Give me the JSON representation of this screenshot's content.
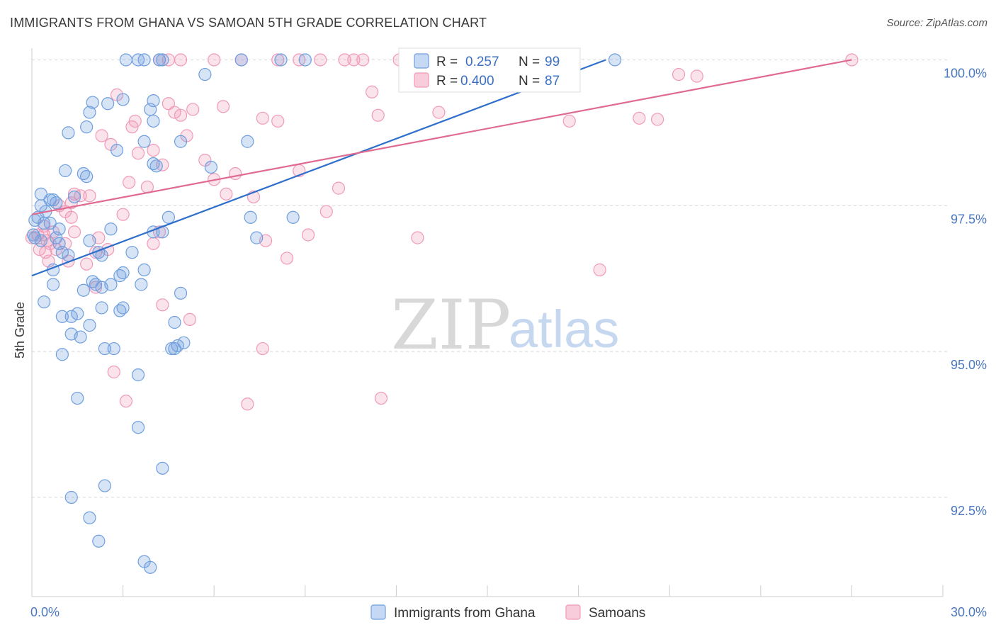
{
  "title": "IMMIGRANTS FROM GHANA VS SAMOAN 5TH GRADE CORRELATION CHART",
  "source": "Source: ZipAtlas.com",
  "watermark": {
    "zip": "ZIP",
    "atlas": "atlas"
  },
  "colors": {
    "ghana": "#6f9fde",
    "ghana_line": "#2f6fcc",
    "samoan": "#f09ab8",
    "samoan_line": "#e06a92",
    "grid": "#d8d8d8",
    "tick_text": "#4a78c2"
  },
  "legend": {
    "r_label": "R =",
    "n_label": "N =",
    "ghana_r": "0.257",
    "ghana_n": "99",
    "samoan_r": "0.400",
    "samoan_n": "87"
  },
  "bottom_legend": {
    "ghana": "Immigrants from Ghana",
    "samoan": "Samoans"
  },
  "chart_data": {
    "type": "scatter",
    "title": "IMMIGRANTS FROM GHANA VS SAMOAN 5TH GRADE CORRELATION CHART",
    "xlabel": "",
    "ylabel": "5th Grade",
    "xlim": [
      0,
      30
    ],
    "ylim": [
      90.8,
      100.2
    ],
    "x_tick_labels": [
      "0.0%",
      "30.0%"
    ],
    "y_ticks": [
      92.5,
      95.0,
      97.5,
      100.0
    ],
    "y_tick_labels": [
      "92.5%",
      "95.0%",
      "97.5%",
      "100.0%"
    ],
    "grid": "horizontal dashed",
    "legend_position": "top-center",
    "series": [
      {
        "name": "Immigrants from Ghana",
        "r": 0.257,
        "n": 99,
        "trend": {
          "x": [
            0,
            18.9
          ],
          "y": [
            96.3,
            100.0
          ]
        },
        "trend_dashed": {
          "x": [
            18.9,
            19.1
          ],
          "y": [
            100.0,
            100.04
          ]
        },
        "points": [
          [
            3.1,
            100
          ],
          [
            3.7,
            100
          ],
          [
            3.5,
            100
          ],
          [
            4.2,
            100
          ],
          [
            4.3,
            100
          ],
          [
            6.9,
            100
          ],
          [
            8.2,
            100
          ],
          [
            9.0,
            100
          ],
          [
            19.2,
            100
          ],
          [
            5.7,
            99.75
          ],
          [
            2.0,
            99.27
          ],
          [
            2.5,
            99.25
          ],
          [
            3.0,
            99.32
          ],
          [
            4.0,
            99.3
          ],
          [
            1.9,
            99.1
          ],
          [
            3.9,
            99.15
          ],
          [
            4.0,
            98.95
          ],
          [
            1.8,
            98.85
          ],
          [
            1.2,
            98.75
          ],
          [
            3.7,
            98.6
          ],
          [
            4.9,
            98.6
          ],
          [
            7.1,
            98.6
          ],
          [
            2.8,
            98.45
          ],
          [
            4.0,
            98.22
          ],
          [
            4.1,
            98.18
          ],
          [
            5.9,
            98.16
          ],
          [
            1.1,
            98.1
          ],
          [
            1.7,
            98.05
          ],
          [
            1.8,
            98.0
          ],
          [
            0.3,
            97.7
          ],
          [
            0.6,
            97.6
          ],
          [
            0.7,
            97.6
          ],
          [
            0.8,
            97.55
          ],
          [
            1.4,
            97.65
          ],
          [
            0.3,
            97.5
          ],
          [
            0.45,
            97.4
          ],
          [
            0.2,
            97.3
          ],
          [
            0.4,
            97.2
          ],
          [
            0.1,
            97.25
          ],
          [
            0.6,
            97.2
          ],
          [
            0.9,
            97.1
          ],
          [
            2.6,
            97.1
          ],
          [
            4.0,
            97.05
          ],
          [
            4.3,
            97.05
          ],
          [
            4.5,
            97.3
          ],
          [
            7.2,
            97.3
          ],
          [
            8.6,
            97.3
          ],
          [
            0.05,
            97.0
          ],
          [
            0.1,
            96.95
          ],
          [
            0.3,
            96.9
          ],
          [
            0.8,
            96.95
          ],
          [
            0.9,
            96.85
          ],
          [
            1.9,
            96.9
          ],
          [
            7.4,
            96.95
          ],
          [
            1.0,
            96.7
          ],
          [
            1.2,
            96.65
          ],
          [
            2.2,
            96.7
          ],
          [
            2.3,
            96.65
          ],
          [
            3.3,
            96.7
          ],
          [
            0.7,
            96.4
          ],
          [
            3.7,
            96.4
          ],
          [
            2.9,
            96.3
          ],
          [
            3.0,
            96.35
          ],
          [
            2.0,
            96.2
          ],
          [
            0.7,
            96.15
          ],
          [
            2.1,
            96.15
          ],
          [
            2.6,
            96.15
          ],
          [
            3.6,
            96.15
          ],
          [
            1.7,
            96.05
          ],
          [
            4.9,
            96.0
          ],
          [
            2.3,
            96.1
          ],
          [
            0.4,
            95.85
          ],
          [
            2.3,
            95.75
          ],
          [
            2.9,
            95.7
          ],
          [
            3.0,
            95.75
          ],
          [
            1.5,
            95.65
          ],
          [
            1.3,
            95.6
          ],
          [
            1.0,
            95.6
          ],
          [
            4.7,
            95.5
          ],
          [
            1.9,
            95.45
          ],
          [
            1.3,
            95.3
          ],
          [
            1.6,
            95.25
          ],
          [
            4.8,
            95.1
          ],
          [
            4.7,
            95.05
          ],
          [
            4.6,
            95.05
          ],
          [
            5.0,
            95.15
          ],
          [
            2.4,
            95.05
          ],
          [
            2.7,
            95.05
          ],
          [
            1.0,
            94.95
          ],
          [
            3.5,
            94.6
          ],
          [
            1.5,
            94.2
          ],
          [
            3.5,
            93.7
          ],
          [
            4.3,
            93.0
          ],
          [
            2.4,
            92.7
          ],
          [
            1.3,
            92.5
          ],
          [
            1.9,
            92.15
          ],
          [
            2.2,
            91.75
          ],
          [
            3.7,
            91.4
          ],
          [
            3.9,
            91.3
          ]
        ]
      },
      {
        "name": "Samoans",
        "r": 0.4,
        "n": 87,
        "trend": {
          "x": [
            0,
            27.0
          ],
          "y": [
            97.35,
            100.0
          ]
        },
        "points": [
          [
            4.2,
            100
          ],
          [
            4.5,
            100
          ],
          [
            4.9,
            100
          ],
          [
            6.0,
            100
          ],
          [
            6.9,
            100
          ],
          [
            8.1,
            100
          ],
          [
            8.8,
            100
          ],
          [
            9.5,
            100
          ],
          [
            10.3,
            100
          ],
          [
            10.6,
            100
          ],
          [
            10.9,
            100
          ],
          [
            12.1,
            100
          ],
          [
            14.2,
            100
          ],
          [
            27.0,
            100
          ],
          [
            21.3,
            99.75
          ],
          [
            21.9,
            99.72
          ],
          [
            11.2,
            99.45
          ],
          [
            2.8,
            99.4
          ],
          [
            4.5,
            99.25
          ],
          [
            6.3,
            99.2
          ],
          [
            5.3,
            99.15
          ],
          [
            4.7,
            99.1
          ],
          [
            4.9,
            99.05
          ],
          [
            11.4,
            99.05
          ],
          [
            13.4,
            99.1
          ],
          [
            8.1,
            98.95
          ],
          [
            7.6,
            99.0
          ],
          [
            3.4,
            98.95
          ],
          [
            3.3,
            98.85
          ],
          [
            20.0,
            99.0
          ],
          [
            20.6,
            98.98
          ],
          [
            17.7,
            98.95
          ],
          [
            2.3,
            98.7
          ],
          [
            2.6,
            98.55
          ],
          [
            5.1,
            98.7
          ],
          [
            3.5,
            98.4
          ],
          [
            4.0,
            98.45
          ],
          [
            5.7,
            98.28
          ],
          [
            4.3,
            98.2
          ],
          [
            8.8,
            98.1
          ],
          [
            6.7,
            98.05
          ],
          [
            6.0,
            97.95
          ],
          [
            3.2,
            97.9
          ],
          [
            3.8,
            97.82
          ],
          [
            10.1,
            97.8
          ],
          [
            6.4,
            97.7
          ],
          [
            7.3,
            97.65
          ],
          [
            1.4,
            97.7
          ],
          [
            1.6,
            97.67
          ],
          [
            1.9,
            97.67
          ],
          [
            1.3,
            97.55
          ],
          [
            0.9,
            97.5
          ],
          [
            1.1,
            97.4
          ],
          [
            3.0,
            97.35
          ],
          [
            9.7,
            97.4
          ],
          [
            1.3,
            97.3
          ],
          [
            0.4,
            97.15
          ],
          [
            0.7,
            97.05
          ],
          [
            1.4,
            97.05
          ],
          [
            4.2,
            97.05
          ],
          [
            0.2,
            97.0
          ],
          [
            0.4,
            97.0
          ],
          [
            0.0,
            96.95
          ],
          [
            0.5,
            96.9
          ],
          [
            0.6,
            96.85
          ],
          [
            1.1,
            96.85
          ],
          [
            2.2,
            96.95
          ],
          [
            4.0,
            96.85
          ],
          [
            7.7,
            96.9
          ],
          [
            9.1,
            97.0
          ],
          [
            12.7,
            96.95
          ],
          [
            0.25,
            96.75
          ],
          [
            0.45,
            96.7
          ],
          [
            0.8,
            96.75
          ],
          [
            2.1,
            96.7
          ],
          [
            2.5,
            96.75
          ],
          [
            8.4,
            96.6
          ],
          [
            18.7,
            96.4
          ],
          [
            1.8,
            96.5
          ],
          [
            1.2,
            96.55
          ],
          [
            0.55,
            96.55
          ],
          [
            2.1,
            96.1
          ],
          [
            4.3,
            95.8
          ],
          [
            5.2,
            95.55
          ],
          [
            7.6,
            95.05
          ],
          [
            2.7,
            94.65
          ],
          [
            3.1,
            94.15
          ],
          [
            7.1,
            94.1
          ],
          [
            11.5,
            94.2
          ]
        ]
      }
    ]
  }
}
